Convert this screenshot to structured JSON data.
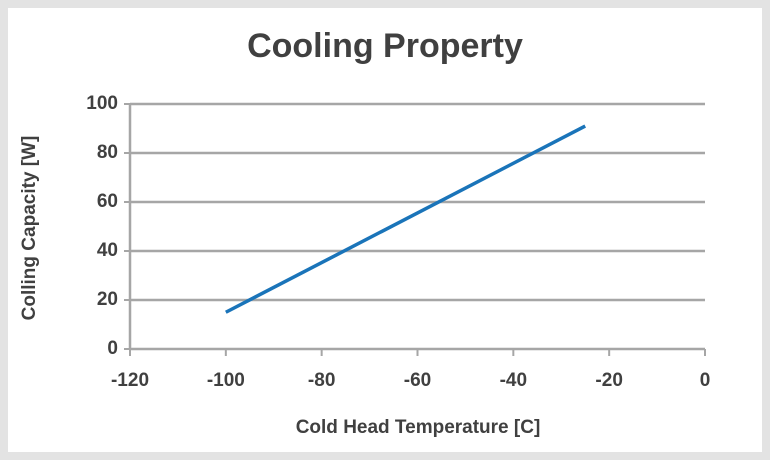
{
  "chart_data": {
    "type": "line",
    "title": "Cooling Property",
    "x_label": "Cold Head Temperature [C]",
    "y_label": "Colling Capacity [W]",
    "series": [
      {
        "color": "#1a74b9",
        "x": [
          -100,
          -25
        ],
        "values": [
          15,
          91
        ]
      }
    ],
    "xlim": [
      -120,
      0
    ],
    "xticks": [
      -120,
      -100,
      -80,
      -60,
      -40,
      -20,
      0
    ],
    "ylim": [
      0,
      100
    ],
    "yticks": [
      0,
      20,
      40,
      60,
      80,
      100
    ],
    "grid": true
  }
}
